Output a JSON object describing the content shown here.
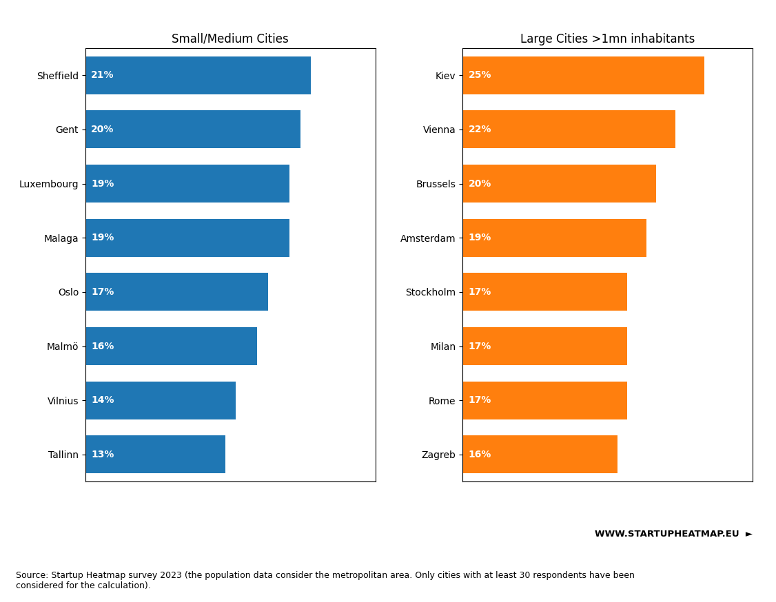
{
  "chart_data": [
    {
      "type": "bar",
      "orientation": "horizontal",
      "title": "Small/Medium Cities",
      "categories": [
        "Sheffield",
        "Gent",
        "Luxembourg",
        "Malaga",
        "Oslo",
        "Malmö",
        "Vilnius",
        "Tallinn"
      ],
      "values": [
        21,
        20,
        19,
        19,
        17,
        16,
        14,
        13
      ],
      "value_labels": [
        "21%",
        "20%",
        "19%",
        "19%",
        "17%",
        "16%",
        "14%",
        "13%"
      ],
      "data_labels": true,
      "xlim": [
        0,
        27
      ],
      "xticks": [],
      "tick_labels": "y",
      "grid": false
    },
    {
      "type": "bar",
      "orientation": "horizontal",
      "title": "Large Cities >1mn inhabitants",
      "categories": [
        "Kiev",
        "Vienna",
        "Brussels",
        "Amsterdam",
        "Stockholm",
        "Milan",
        "Rome",
        "Zagreb"
      ],
      "values": [
        25,
        22,
        20,
        19,
        17,
        17,
        17,
        16
      ],
      "value_labels": [
        "25%",
        "22%",
        "20%",
        "19%",
        "17%",
        "17%",
        "17%",
        "16%"
      ],
      "data_labels": true,
      "xlim": [
        0,
        30
      ],
      "xticks": [],
      "tick_labels": "y",
      "grid": false,
      "annotations": [
        "WWW.STARTUPHEATMAP.EU  ►",
        "Source: Startup Heatmap survey 2023 (the population data consider the metropolitan area. Only cities with at least 30 respondents have been\nconsidered for the calculation)."
      ]
    }
  ]
}
